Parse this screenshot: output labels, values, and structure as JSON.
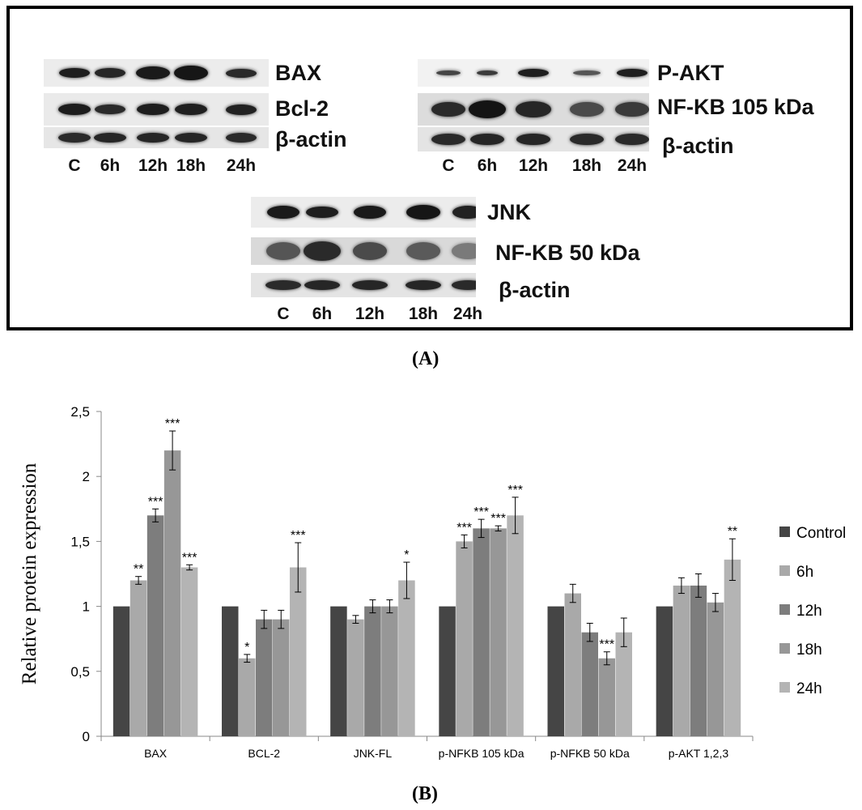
{
  "panel_a": {
    "caption": "(A)",
    "caption_letter": "A",
    "group1": {
      "labels": [
        "BAX",
        "Bcl-2",
        "β-actin"
      ],
      "lanes": [
        "C",
        "6h",
        "12h",
        "18h",
        "24h"
      ]
    },
    "group2": {
      "labels": [
        "P-AKT",
        "NF-KB 105 kDa",
        "β-actin"
      ],
      "lanes": [
        "C",
        "6h",
        "12h",
        "18h",
        "24h"
      ]
    },
    "group3": {
      "labels": [
        "JNK",
        "NF-KB 50 kDa",
        "β-actin"
      ],
      "lanes": [
        "C",
        "6h",
        "12h",
        "18h",
        "24h"
      ]
    }
  },
  "panel_b": {
    "caption": "(B)",
    "caption_letter": "B"
  },
  "colors": {
    "Control": "#454545",
    "6h": "#a9a9a9",
    "12h": "#7d7d7d",
    "18h": "#979797",
    "24h": "#b4b4b4"
  },
  "chart_data": {
    "type": "bar",
    "title": "",
    "xlabel": "",
    "ylabel": "Relative protein expression",
    "ylim": [
      0,
      2.5
    ],
    "yticks": [
      "0",
      "0,5",
      "1",
      "1,5",
      "2",
      "2,5"
    ],
    "categories": [
      "BAX",
      "BCL-2",
      "JNK-FL",
      "p-NFKB 105 kDa",
      "p-NFKB 50 kDa",
      "p-AKT 1,2,3"
    ],
    "legend_position": "right",
    "series": [
      {
        "name": "Control",
        "values": [
          1,
          1,
          1,
          1,
          1,
          1
        ],
        "errors": [
          0,
          0,
          0,
          0,
          0,
          0
        ],
        "sig": [
          "",
          "",
          "",
          "",
          "",
          ""
        ]
      },
      {
        "name": "6h",
        "values": [
          1.2,
          0.6,
          0.9,
          1.5,
          1.1,
          1.16
        ],
        "errors": [
          0.03,
          0.03,
          0.03,
          0.05,
          0.07,
          0.06
        ],
        "sig": [
          "**",
          "*",
          "",
          "***",
          "",
          ""
        ]
      },
      {
        "name": "12h",
        "values": [
          1.7,
          0.9,
          1.0,
          1.6,
          0.8,
          1.16
        ],
        "errors": [
          0.05,
          0.07,
          0.05,
          0.07,
          0.07,
          0.09
        ],
        "sig": [
          "***",
          "",
          "",
          "***",
          "",
          ""
        ]
      },
      {
        "name": "18h",
        "values": [
          2.2,
          0.9,
          1.0,
          1.6,
          0.6,
          1.03
        ],
        "errors": [
          0.15,
          0.07,
          0.05,
          0.02,
          0.05,
          0.07
        ],
        "sig": [
          "***",
          "",
          "",
          "***",
          "***",
          ""
        ]
      },
      {
        "name": "24h",
        "values": [
          1.3,
          1.3,
          1.2,
          1.7,
          0.8,
          1.36
        ],
        "errors": [
          0.02,
          0.19,
          0.14,
          0.14,
          0.11,
          0.16
        ],
        "sig": [
          "***",
          "***",
          "*",
          "***",
          "",
          "**"
        ]
      }
    ]
  }
}
